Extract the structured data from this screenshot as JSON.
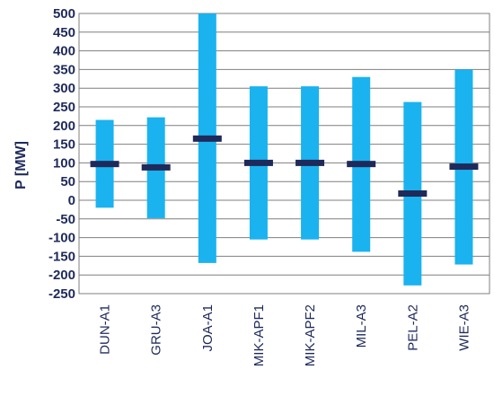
{
  "chart_data": {
    "type": "bar",
    "title": "",
    "xlabel": "",
    "ylabel": "P [MW]",
    "ylim": [
      -250,
      500
    ],
    "yticks": [
      500,
      450,
      400,
      350,
      300,
      250,
      200,
      150,
      100,
      50,
      0,
      -50,
      -100,
      -150,
      -200,
      -250
    ],
    "grid": true,
    "categories": [
      "DUN-A1",
      "GRU-A3",
      "JOA-A1",
      "MIK-APF1",
      "MIK-APF2",
      "MIL-A3",
      "PEL-A2",
      "WIE-A3"
    ],
    "series": [
      {
        "values_min": [
          -20,
          -48,
          -168,
          -105,
          -105,
          -138,
          -228,
          -172
        ],
        "values_max": [
          215,
          222,
          500,
          305,
          305,
          330,
          263,
          350
        ]
      },
      {
        "values": [
          97,
          88,
          165,
          100,
          100,
          97,
          18,
          90
        ]
      }
    ],
    "colors": {
      "range": "#1ab3ef",
      "marker": "#1f2a5a",
      "grid": "#7f7f7f",
      "axis": "#1f2a5a"
    }
  }
}
